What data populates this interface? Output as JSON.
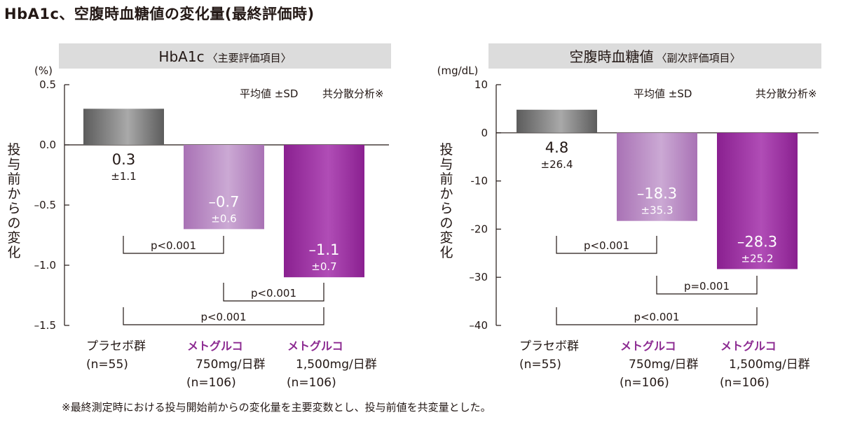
{
  "page": {
    "title": "HbA1c、空腹時血糖値の変化量(最終評価時)",
    "footnote": "※最終測定時における投与開始前からの変化量を主要変数とし、投与前値を共変量とした。"
  },
  "colors": {
    "placebo_dark": "#5c5c5c",
    "placebo_light": "#a9a9a9",
    "low_dark": "#a972b5",
    "low_light": "#cba9d4",
    "high_dark": "#8a2090",
    "high_light": "#b04db6",
    "metglu_text": "#8c2a91",
    "header_bg": "#dcdcdc"
  },
  "chart_data": [
    {
      "type": "bar",
      "header_main": "HbA1c",
      "header_sub": "〈主要評価項目〉",
      "unit": "(%)",
      "ylabel": "投与前からの変化",
      "ylim": [
        -1.5,
        0.5
      ],
      "ticks": [
        0.5,
        0.0,
        -0.5,
        -1.0,
        -1.5
      ],
      "tick_labels": [
        "0.5",
        "0.0",
        "–0.5",
        "–1.0",
        "–1.5"
      ],
      "note_stat": "平均値 ±SD",
      "note_method": "共分散分析※",
      "categories": [
        {
          "lines": [
            "プラセボ群",
            "(n=55)"
          ],
          "brand": ""
        },
        {
          "lines": [
            "750mg/日群",
            "(n=106)"
          ],
          "brand": "メトグルコ"
        },
        {
          "lines": [
            "1,500mg/日群",
            "(n=106)"
          ],
          "brand": "メトグルコ"
        }
      ],
      "values": [
        0.3,
        -0.7,
        -1.1
      ],
      "value_labels": [
        "0.3",
        "–0.7",
        "–1.1"
      ],
      "sd_labels": [
        "±1.1",
        "±0.6",
        "±0.7"
      ],
      "comparisons": [
        {
          "from": 0,
          "to": 1,
          "label": "p<0.001"
        },
        {
          "from": 1,
          "to": 2,
          "label": "p<0.001"
        },
        {
          "from": 0,
          "to": 2,
          "label": "p<0.001"
        }
      ]
    },
    {
      "type": "bar",
      "header_main": "空腹時血糖値",
      "header_sub": "〈副次評価項目〉",
      "unit": "(mg/dL)",
      "ylabel": "投与前からの変化",
      "ylim": [
        -40,
        10
      ],
      "ticks": [
        10,
        0,
        -10,
        -20,
        -30,
        -40
      ],
      "tick_labels": [
        "10",
        "0",
        "-10",
        "-20",
        "–30",
        "–40"
      ],
      "note_stat": "平均値 ±SD",
      "note_method": "共分散分析※",
      "categories": [
        {
          "lines": [
            "プラセボ群",
            "(n=55)"
          ],
          "brand": ""
        },
        {
          "lines": [
            "750mg/日群",
            "(n=106)"
          ],
          "brand": "メトグルコ"
        },
        {
          "lines": [
            "1,500mg/日群",
            "(n=106)"
          ],
          "brand": "メトグルコ"
        }
      ],
      "values": [
        4.8,
        -18.3,
        -28.3
      ],
      "value_labels": [
        "4.8",
        "–18.3",
        "–28.3"
      ],
      "sd_labels": [
        "±26.4",
        "±35.3",
        "±25.2"
      ],
      "comparisons": [
        {
          "from": 0,
          "to": 1,
          "label": "p<0.001"
        },
        {
          "from": 1,
          "to": 2,
          "label": "p=0.001"
        },
        {
          "from": 0,
          "to": 2,
          "label": "p<0.001"
        }
      ]
    }
  ]
}
